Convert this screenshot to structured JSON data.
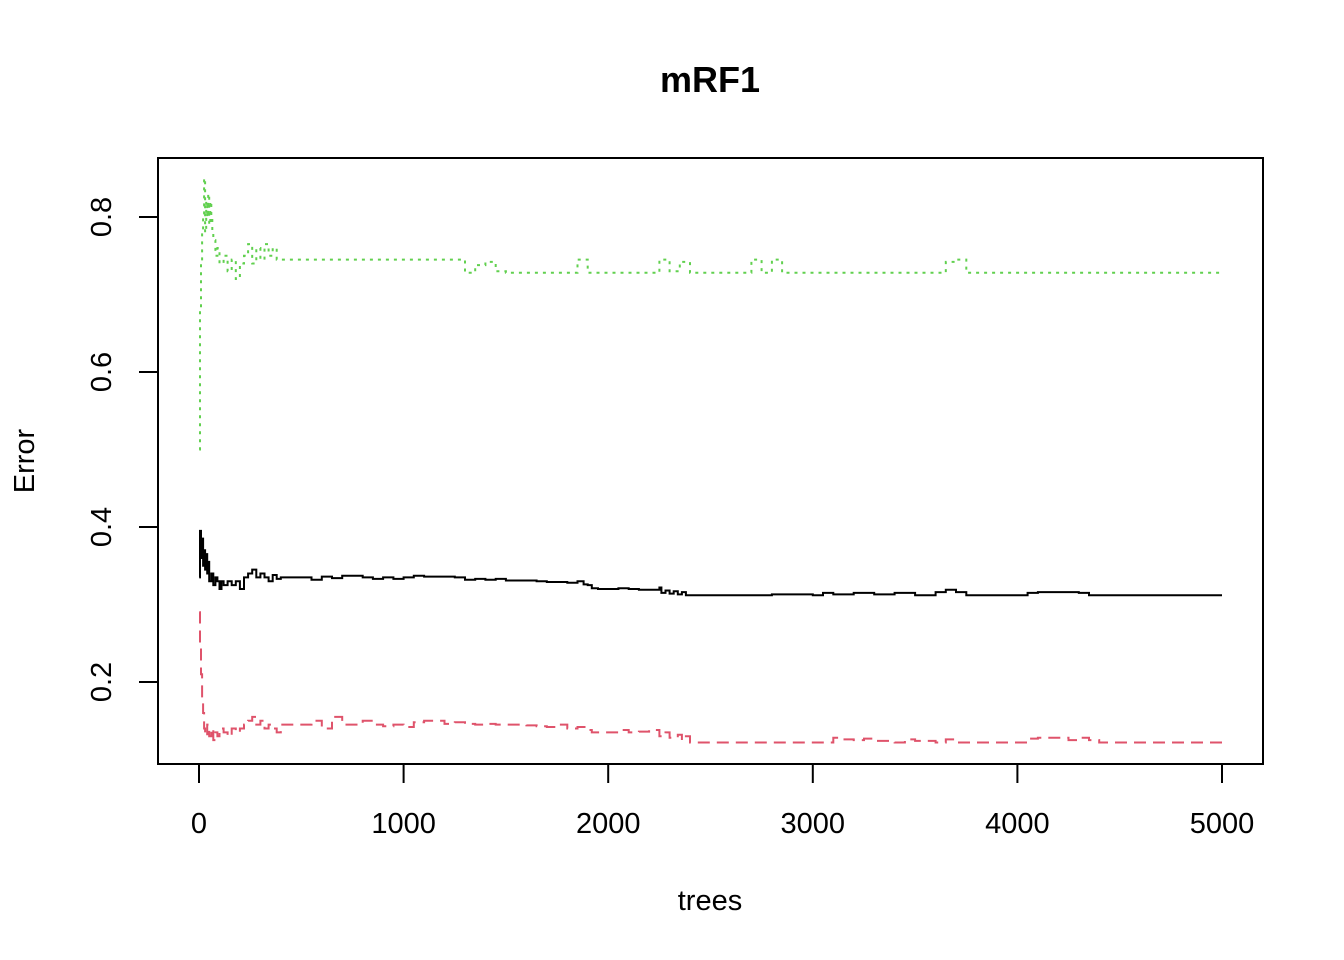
{
  "chart_data": {
    "type": "line",
    "title": "mRF1",
    "xlabel": "trees",
    "ylabel": "Error",
    "xlim": [
      0,
      5000
    ],
    "ylim": [
      0.1,
      0.88
    ],
    "x_ticks": [
      0,
      1000,
      2000,
      3000,
      4000,
      5000
    ],
    "y_ticks": [
      0.2,
      0.4,
      0.6,
      0.8
    ],
    "x_tick_labels": [
      "0",
      "1000",
      "2000",
      "3000",
      "4000",
      "5000"
    ],
    "y_tick_labels": [
      "0.2",
      "0.4",
      "0.6",
      "0.8"
    ],
    "grid": false,
    "legend": "none",
    "series": [
      {
        "color": "#000000",
        "dash": "solid",
        "x": [
          1,
          5,
          10,
          15,
          20,
          25,
          30,
          35,
          40,
          45,
          50,
          60,
          70,
          80,
          90,
          100,
          110,
          120,
          140,
          160,
          180,
          200,
          220,
          240,
          260,
          280,
          300,
          320,
          340,
          360,
          380,
          400,
          500,
          550,
          600,
          650,
          700,
          800,
          850,
          900,
          950,
          1000,
          1050,
          1100,
          1250,
          1300,
          1350,
          1400,
          1450,
          1500,
          1600,
          1650,
          1700,
          1750,
          1800,
          1850,
          1880,
          1900,
          1920,
          1950,
          2000,
          2050,
          2100,
          2150,
          2200,
          2250,
          2260,
          2280,
          2300,
          2320,
          2340,
          2360,
          2380,
          2400,
          2500,
          2700,
          2800,
          3000,
          3050,
          3100,
          3200,
          3300,
          3400,
          3500,
          3600,
          3650,
          3700,
          3750,
          4000,
          4050,
          4100,
          4200,
          4300,
          4350,
          4400,
          4800,
          5000
        ],
        "y": [
          0.335,
          0.395,
          0.36,
          0.385,
          0.35,
          0.37,
          0.345,
          0.365,
          0.34,
          0.355,
          0.33,
          0.34,
          0.325,
          0.335,
          0.33,
          0.32,
          0.33,
          0.325,
          0.33,
          0.325,
          0.33,
          0.32,
          0.335,
          0.34,
          0.345,
          0.335,
          0.34,
          0.335,
          0.33,
          0.338,
          0.333,
          0.335,
          0.335,
          0.332,
          0.336,
          0.334,
          0.337,
          0.335,
          0.333,
          0.335,
          0.333,
          0.335,
          0.337,
          0.336,
          0.335,
          0.332,
          0.333,
          0.332,
          0.333,
          0.331,
          0.331,
          0.33,
          0.329,
          0.329,
          0.328,
          0.33,
          0.326,
          0.325,
          0.321,
          0.32,
          0.32,
          0.321,
          0.32,
          0.319,
          0.319,
          0.322,
          0.315,
          0.318,
          0.314,
          0.317,
          0.313,
          0.316,
          0.312,
          0.312,
          0.312,
          0.312,
          0.313,
          0.312,
          0.315,
          0.313,
          0.315,
          0.313,
          0.315,
          0.312,
          0.316,
          0.319,
          0.316,
          0.312,
          0.312,
          0.315,
          0.316,
          0.316,
          0.315,
          0.312,
          0.312,
          0.312,
          0.312
        ]
      },
      {
        "color": "#df536b",
        "dash": "dashed",
        "x": [
          1,
          5,
          10,
          15,
          20,
          25,
          30,
          40,
          50,
          60,
          70,
          80,
          90,
          100,
          120,
          140,
          160,
          180,
          200,
          220,
          240,
          260,
          280,
          300,
          320,
          340,
          360,
          380,
          400,
          500,
          550,
          600,
          650,
          700,
          800,
          850,
          900,
          950,
          1000,
          1050,
          1100,
          1200,
          1250,
          1300,
          1350,
          1400,
          1450,
          1500,
          1600,
          1650,
          1700,
          1750,
          1800,
          1850,
          1900,
          1920,
          1950,
          2000,
          2050,
          2100,
          2150,
          2200,
          2250,
          2280,
          2300,
          2320,
          2340,
          2360,
          2380,
          2400,
          2700,
          2800,
          3000,
          3100,
          3150,
          3200,
          3250,
          3300,
          3400,
          3450,
          3500,
          3600,
          3650,
          3700,
          3750,
          4000,
          4050,
          4100,
          4200,
          4250,
          4300,
          4350,
          4400,
          5000
        ],
        "y": [
          0.29,
          0.25,
          0.21,
          0.18,
          0.16,
          0.14,
          0.13,
          0.145,
          0.13,
          0.14,
          0.125,
          0.135,
          0.13,
          0.14,
          0.135,
          0.13,
          0.14,
          0.135,
          0.14,
          0.145,
          0.15,
          0.155,
          0.145,
          0.15,
          0.14,
          0.145,
          0.14,
          0.135,
          0.145,
          0.145,
          0.15,
          0.14,
          0.155,
          0.145,
          0.15,
          0.145,
          0.143,
          0.145,
          0.142,
          0.148,
          0.15,
          0.146,
          0.148,
          0.146,
          0.145,
          0.146,
          0.145,
          0.145,
          0.144,
          0.143,
          0.142,
          0.145,
          0.14,
          0.142,
          0.138,
          0.135,
          0.135,
          0.135,
          0.138,
          0.135,
          0.136,
          0.138,
          0.13,
          0.135,
          0.128,
          0.13,
          0.132,
          0.125,
          0.13,
          0.122,
          0.122,
          0.122,
          0.122,
          0.128,
          0.126,
          0.125,
          0.127,
          0.124,
          0.122,
          0.126,
          0.124,
          0.122,
          0.126,
          0.122,
          0.122,
          0.122,
          0.127,
          0.128,
          0.128,
          0.125,
          0.128,
          0.125,
          0.122,
          0.122
        ]
      },
      {
        "color": "#61d04f",
        "dash": "dotted",
        "x": [
          1,
          5,
          10,
          15,
          20,
          25,
          30,
          35,
          40,
          45,
          50,
          55,
          60,
          65,
          70,
          80,
          90,
          100,
          120,
          140,
          160,
          180,
          200,
          220,
          240,
          260,
          280,
          300,
          320,
          340,
          360,
          380,
          400,
          600,
          800,
          1000,
          1200,
          1280,
          1300,
          1350,
          1400,
          1450,
          1500,
          1800,
          1850,
          1900,
          2200,
          2250,
          2300,
          2350,
          2400,
          2650,
          2700,
          2750,
          2800,
          2850,
          3600,
          3650,
          3700,
          3750,
          5000
        ],
        "y": [
          0.5,
          0.68,
          0.74,
          0.78,
          0.8,
          0.85,
          0.78,
          0.82,
          0.8,
          0.83,
          0.79,
          0.82,
          0.8,
          0.78,
          0.77,
          0.75,
          0.76,
          0.74,
          0.75,
          0.73,
          0.745,
          0.72,
          0.74,
          0.75,
          0.765,
          0.74,
          0.76,
          0.745,
          0.765,
          0.75,
          0.76,
          0.745,
          0.745,
          0.745,
          0.745,
          0.745,
          0.745,
          0.745,
          0.728,
          0.738,
          0.742,
          0.73,
          0.728,
          0.728,
          0.745,
          0.728,
          0.728,
          0.745,
          0.73,
          0.742,
          0.728,
          0.728,
          0.745,
          0.728,
          0.745,
          0.728,
          0.728,
          0.742,
          0.745,
          0.728,
          0.728
        ]
      }
    ]
  }
}
